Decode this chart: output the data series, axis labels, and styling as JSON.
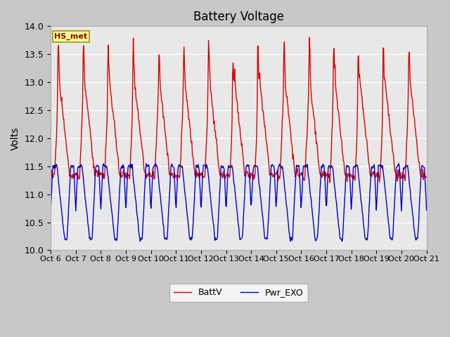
{
  "title": "Battery Voltage",
  "ylabel": "Volts",
  "ylim": [
    10.0,
    14.0
  ],
  "yticks": [
    10.0,
    10.5,
    11.0,
    11.5,
    12.0,
    12.5,
    13.0,
    13.5,
    14.0
  ],
  "xtick_labels": [
    "Oct 6",
    "Oct 7",
    "Oct 8",
    "Oct 9",
    "Oct 10",
    "Oct 11",
    "Oct 12",
    "Oct 13",
    "Oct 14",
    "Oct 15",
    "Oct 16",
    "Oct 17",
    "Oct 18",
    "Oct 19",
    "Oct 20",
    "Oct 21"
  ],
  "batt_color": "#dd0000",
  "exo_color": "#0000cc",
  "legend_batt": "BattV",
  "legend_exo": "Pwr_EXO",
  "station_label": "HS_met",
  "fig_bg_color": "#c8c8c8",
  "plot_bg_color": "#e8e8e8",
  "grid_color": "#ffffff",
  "title_fontsize": 12,
  "label_fontsize": 10,
  "tick_fontsize": 9,
  "linewidth": 1.0
}
